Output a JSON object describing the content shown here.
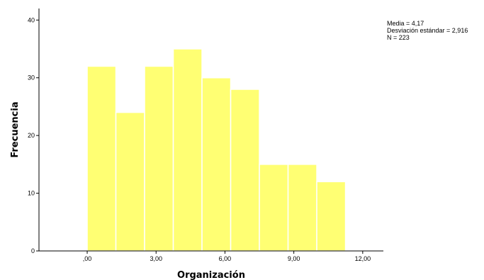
{
  "chart_data": {
    "type": "bar",
    "subtype": "histogram",
    "xlabel": "Organización",
    "ylabel": "Frecuencia",
    "xlim": [
      -2.1,
      12.9
    ],
    "ylim": [
      0,
      42
    ],
    "bin_width": 1.25,
    "bins": [
      {
        "x_start": 0.0,
        "count": 32
      },
      {
        "x_start": 1.25,
        "count": 24
      },
      {
        "x_start": 2.5,
        "count": 32
      },
      {
        "x_start": 3.75,
        "count": 35
      },
      {
        "x_start": 5.0,
        "count": 30
      },
      {
        "x_start": 6.25,
        "count": 28
      },
      {
        "x_start": 7.5,
        "count": 15
      },
      {
        "x_start": 8.75,
        "count": 15
      },
      {
        "x_start": 10.0,
        "count": 12
      }
    ],
    "x_ticks": [
      {
        "value": 0,
        "label": ",00"
      },
      {
        "value": 3,
        "label": "3,00"
      },
      {
        "value": 6,
        "label": "6,00"
      },
      {
        "value": 9,
        "label": "9,00"
      },
      {
        "value": 12,
        "label": "12,00"
      }
    ],
    "y_ticks": [
      {
        "value": 0,
        "label": "0"
      },
      {
        "value": 10,
        "label": "10"
      },
      {
        "value": 20,
        "label": "20"
      },
      {
        "value": 30,
        "label": "30"
      },
      {
        "value": 40,
        "label": "40"
      }
    ],
    "bar_color": "#ffff73",
    "grid": false,
    "legend": "none"
  },
  "stats": {
    "media": "Media = 4,17",
    "desviacion": "Desviación estándar = 2,916",
    "n": "N = 223"
  }
}
